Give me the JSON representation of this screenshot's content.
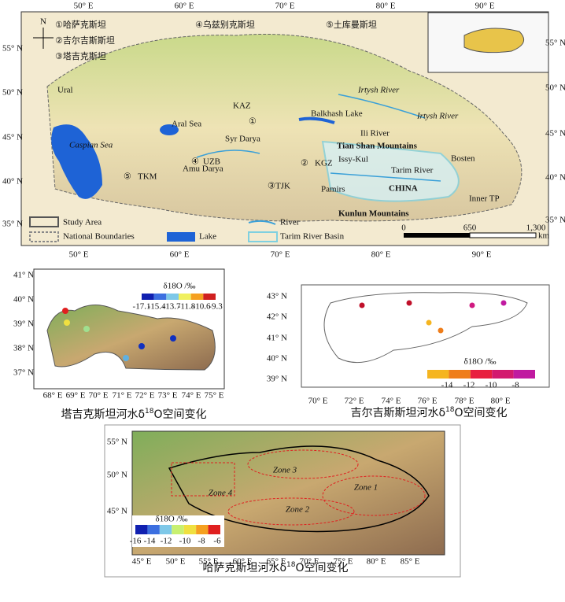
{
  "top_map": {
    "country_list": [
      "①哈萨克斯坦",
      "②吉尔吉斯斯坦",
      "③塔吉克斯坦",
      "④乌兹别克斯坦",
      "⑤土库曼斯坦"
    ],
    "compass": "N",
    "lon_labels": [
      "50° E",
      "60° E",
      "70° E",
      "80° E",
      "90° E"
    ],
    "lat_labels": [
      "55° N",
      "50° N",
      "45° N",
      "40° N",
      "35° N"
    ],
    "map_labels": [
      "KAZ",
      "①",
      "Irtysh River",
      "Irtysh River",
      "Ural",
      "Aral Sea",
      "Balkhash Lake",
      "Caspian Sea",
      "Syr Darya",
      "Ili River",
      "Tian Shan Mountains",
      "Issy-Kul",
      "②",
      "KGZ",
      "④",
      "UZB",
      "⑤",
      "TKM",
      "Amu Darya",
      "Tarim River",
      "Bosten",
      "③",
      "TJK",
      "Pamirs",
      "CHINA",
      "Kunlun Mountains",
      "Inner TP"
    ],
    "legend": [
      "Study Area",
      "National Boundaries",
      "Lake",
      "River",
      "Tarim River Basin"
    ],
    "scale": {
      "ticks": [
        "0",
        "650",
        "1,300"
      ],
      "unit": "km"
    }
  },
  "tajikistan_panel": {
    "lat_labels": [
      "41° N",
      "40° N",
      "39° N",
      "38° N",
      "37° N"
    ],
    "lon_labels": [
      "68° E",
      "69° E",
      "70° E",
      "71° E",
      "72° E",
      "73° E",
      "74° E",
      "75° E"
    ],
    "colorbar_title": "δ18O /‰",
    "colorbar_ticks": [
      "-17.1",
      "-15.4",
      "-13.7",
      "-11.8",
      "-10.6",
      "-9.3"
    ],
    "caption": {
      "text": "塔吉克斯坦河水δ",
      "sup": "18",
      "rest": "O空间变化"
    }
  },
  "kyrgyzstan_panel": {
    "lat_labels": [
      "43° N",
      "42° N",
      "41° N",
      "40° N",
      "39° N"
    ],
    "lon_labels": [
      "70° E",
      "72° E",
      "74° E",
      "76° E",
      "78° E",
      "80° E"
    ],
    "colorbar_title": "δ18O /‰",
    "colorbar_ticks": [
      "-14",
      "-12",
      "-10",
      "-8"
    ],
    "caption": {
      "text": "吉尔吉斯斯坦河水δ",
      "sup": "18",
      "rest": "O空间变化"
    }
  },
  "kazakhstan_panel": {
    "lat_labels": [
      "55° N",
      "50° N",
      "45° N"
    ],
    "lon_labels": [
      "45° E",
      "50° E",
      "55° E",
      "60° E",
      "65° E",
      "70° E",
      "75° E",
      "80° E",
      "85° E"
    ],
    "zones": [
      "Zone 3",
      "Zone 1",
      "Zone 4",
      "Zone 2"
    ],
    "colorbar_title": "δ18O /‰",
    "colorbar_ticks": [
      "-16",
      "-14",
      "-12",
      "-10",
      "-8",
      "-6"
    ],
    "caption": {
      "text": "哈萨克斯坦河水δ",
      "sup": "18",
      "rest": "O空间变化"
    }
  }
}
